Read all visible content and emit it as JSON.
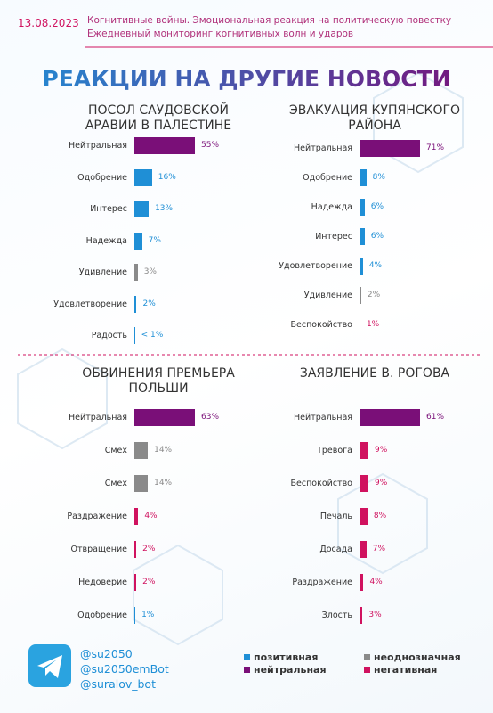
{
  "header": {
    "date": "13.08.2023",
    "line1": "Когнитивные войны. Эмоциональная реакция на политическую повестку",
    "line2": "Ежедневный мониторинг когнитивных волн и ударов",
    "title": "РЕАКЦИИ НА ДРУГИЕ НОВОСТИ"
  },
  "chart_data": [
    {
      "type": "bar",
      "title": "ПОСОЛ САУДОВСКОЙ АРАВИИ В ПАЛЕСТИНЕ",
      "categories": [
        "Нейтральная",
        "Одобрение",
        "Интерес",
        "Надежда",
        "Удивление",
        "Удовлетворение",
        "Радость"
      ],
      "values": [
        55,
        16,
        13,
        7,
        3,
        2,
        0.5
      ],
      "value_labels": [
        "55%",
        "16%",
        "13%",
        "7%",
        "3%",
        "2%",
        "< 1%"
      ],
      "colors": [
        "#7a0f78",
        "#1f8fd6",
        "#1f8fd6",
        "#1f8fd6",
        "#8a8a8a",
        "#1f8fd6",
        "#1f8fd6"
      ]
    },
    {
      "type": "bar",
      "title": "ЭВАКУАЦИЯ КУПЯНСКОГО РАЙОНА",
      "categories": [
        "Нейтральная",
        "Одобрение",
        "Надежда",
        "Интерес",
        "Удовлетворение",
        "Удивление",
        "Беспокойство"
      ],
      "values": [
        71,
        8,
        6,
        6,
        4,
        2,
        1
      ],
      "value_labels": [
        "71%",
        "8%",
        "6%",
        "6%",
        "4%",
        "2%",
        "1%"
      ],
      "colors": [
        "#7a0f78",
        "#1f8fd6",
        "#1f8fd6",
        "#1f8fd6",
        "#1f8fd6",
        "#8a8a8a",
        "#d0125f"
      ]
    },
    {
      "type": "bar",
      "title": "ОБВИНЕНИЯ ПРЕМЬЕРА ПОЛЬШИ",
      "categories": [
        "Нейтральная",
        "Смех",
        "Смех",
        "Раздражение",
        "Отвращение",
        "Недоверие",
        "Одобрение"
      ],
      "values": [
        63,
        14,
        14,
        4,
        2,
        2,
        1
      ],
      "value_labels": [
        "63%",
        "14%",
        "14%",
        "4%",
        "2%",
        "2%",
        "1%"
      ],
      "colors": [
        "#7a0f78",
        "#8a8a8a",
        "#8a8a8a",
        "#d0125f",
        "#d0125f",
        "#d0125f",
        "#1f8fd6"
      ]
    },
    {
      "type": "bar",
      "title": "ЗАЯВЛЕНИЕ В. РОГОВА",
      "categories": [
        "Нейтральная",
        "Тревога",
        "Беспокойство",
        "Печаль",
        "Досада",
        "Раздражение",
        "Злость"
      ],
      "values": [
        61,
        9,
        9,
        8,
        7,
        4,
        3
      ],
      "value_labels": [
        "61%",
        "9%",
        "9%",
        "8%",
        "7%",
        "4%",
        "3%"
      ],
      "colors": [
        "#7a0f78",
        "#d0125f",
        "#d0125f",
        "#d0125f",
        "#d0125f",
        "#d0125f",
        "#d0125f"
      ]
    }
  ],
  "legend": [
    {
      "name": "позитивная",
      "color": "#1f8fd6"
    },
    {
      "name": "неоднозначная",
      "color": "#8a8a8a"
    },
    {
      "name": "нейтральная",
      "color": "#7a0f78"
    },
    {
      "name": "негативная",
      "color": "#d0125f"
    }
  ],
  "contacts": [
    "@su2050",
    "@su2050emBot",
    "@suralov_bot"
  ]
}
